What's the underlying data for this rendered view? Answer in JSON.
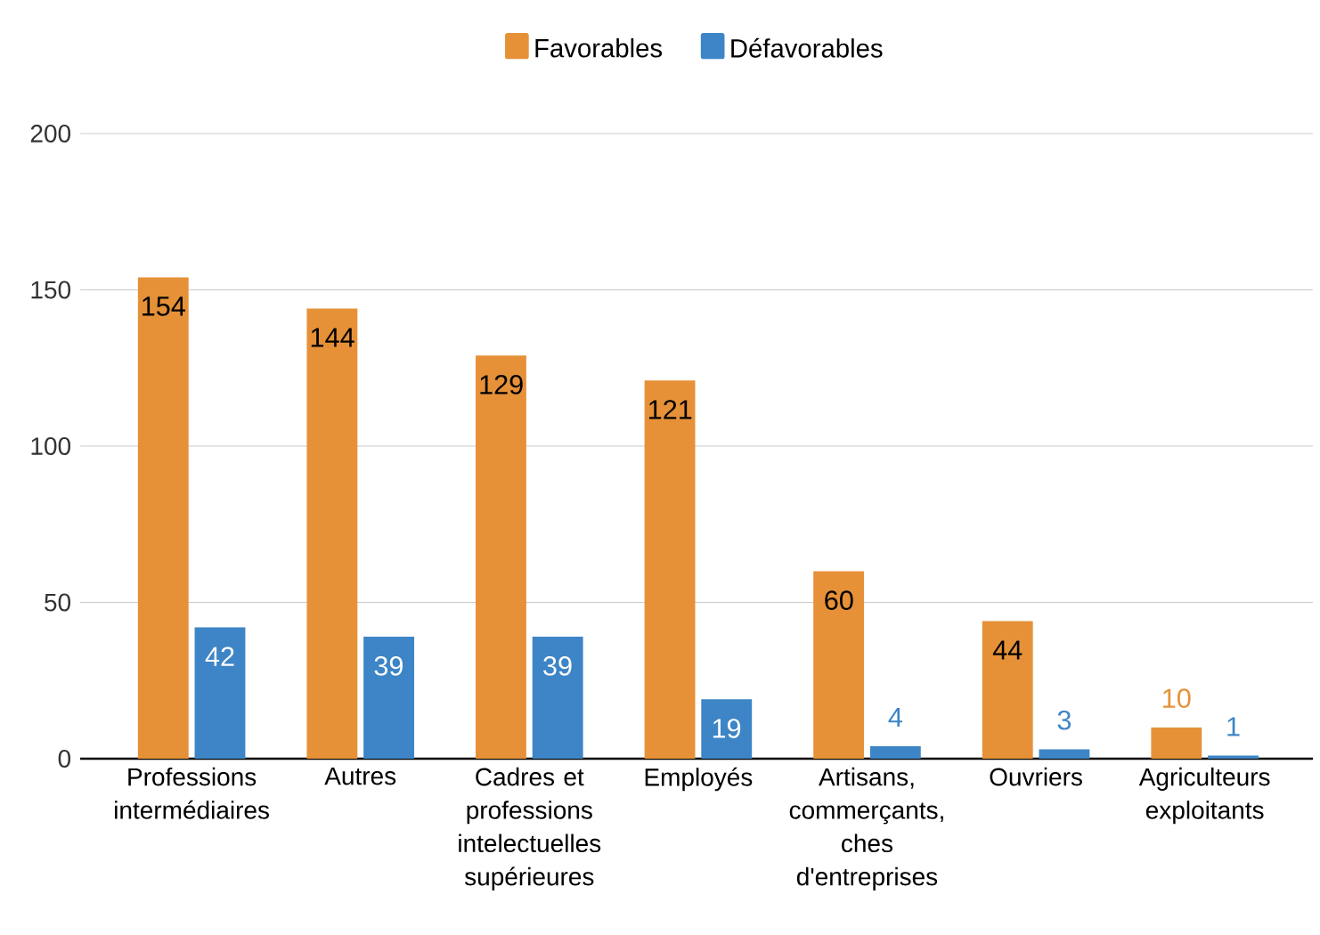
{
  "chart_data": {
    "type": "bar",
    "categories": [
      "Professions intermédiaires",
      "Autres",
      "Cadres et professions intelectuelles supérieures",
      "Employés",
      "Artisans, commerçants, ches d'entreprises",
      "Ouvriers",
      "Agriculteurs exploitants"
    ],
    "series": [
      {
        "name": "Favorables",
        "color": "#e69138",
        "values": [
          154,
          144,
          129,
          121,
          60,
          44,
          10
        ]
      },
      {
        "name": "Défavorables",
        "color": "#3d85c6",
        "values": [
          42,
          39,
          39,
          19,
          4,
          3,
          1
        ]
      }
    ],
    "ylim": [
      0,
      200
    ],
    "yticks": [
      0,
      50,
      100,
      150,
      200
    ],
    "grid": "y",
    "legend": "top",
    "data_labels": true
  }
}
